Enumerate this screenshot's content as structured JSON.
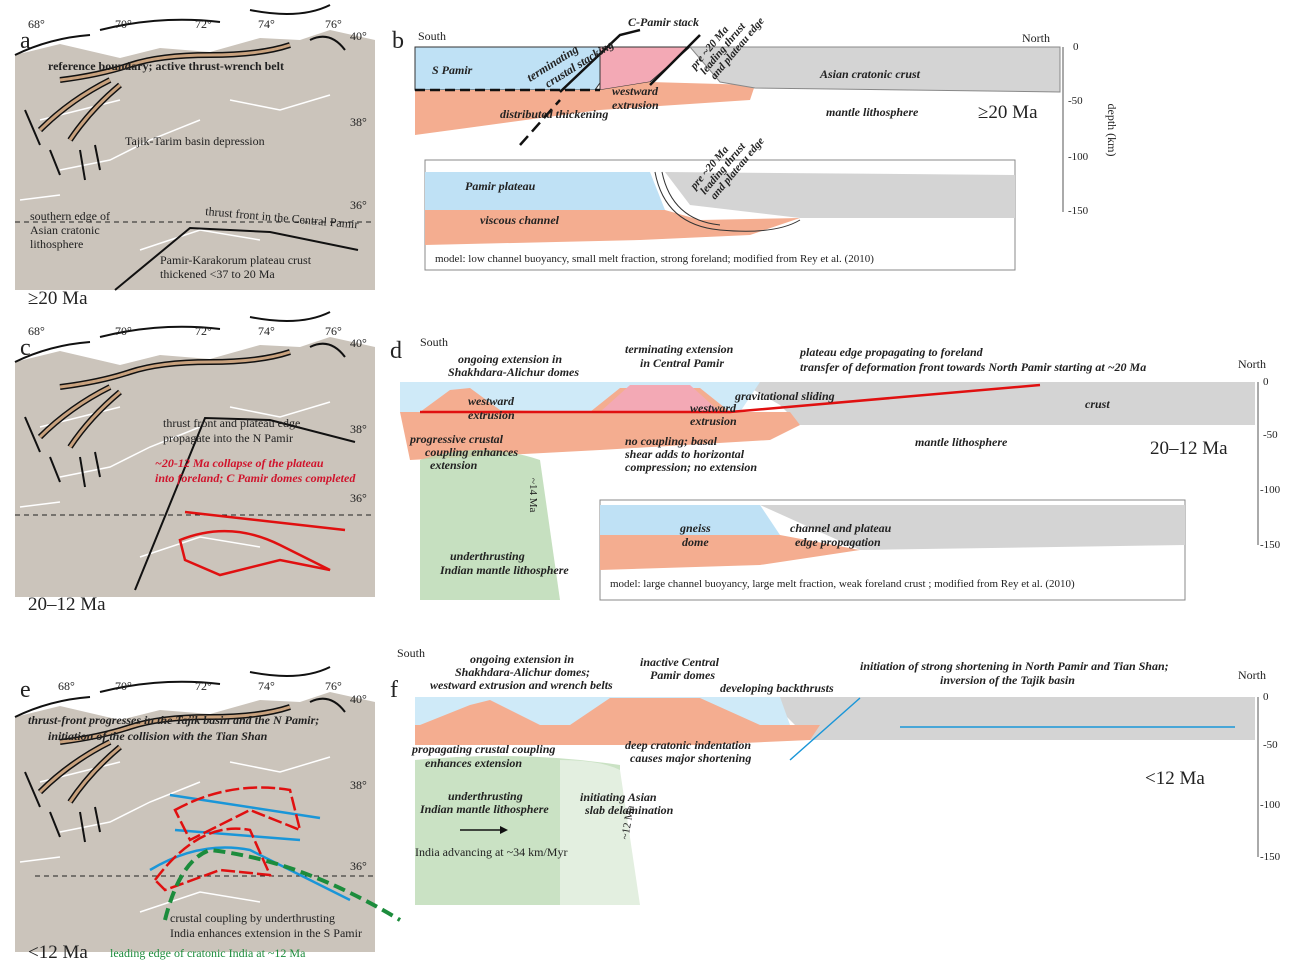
{
  "panel_a": {
    "label": "a",
    "longitudes": [
      "68°",
      "70°",
      "72°",
      "74°",
      "76°"
    ],
    "latitudes": [
      "40°",
      "38°",
      "36°"
    ],
    "reference_boundary": "reference boundary; active thrust-wrench belt",
    "basin": "Tajik-Tarim basin depression",
    "cratonic_edge": [
      "southern edge of",
      "Asian cratonic",
      "lithosphere"
    ],
    "thrust_front": "thrust front in the Central Pamir",
    "plateau_crust": [
      "Pamir-Karakorum plateau crust",
      "thickened <37 to 20 Ma"
    ],
    "age": "≥20 Ma"
  },
  "panel_b": {
    "label": "b",
    "south": "South",
    "north": "North",
    "stack": "C-Pamir stack",
    "stacking": [
      "terminating",
      "crustal stacking"
    ],
    "s_pamir": "S Pamir",
    "extrusion": [
      "westward",
      "extrusion"
    ],
    "leading_thrust": [
      "pre ~20 Ma",
      "leading thrust",
      "and plateau edge"
    ],
    "cratonic_crust": "Asian cratonic crust",
    "mantle": "mantle lithosphere",
    "thickening": "distributed thickening",
    "age": "≥20 Ma",
    "depth_ticks": [
      "0",
      "-50",
      "-100",
      "-150"
    ],
    "depth_label": "depth (km)",
    "model": {
      "plateau": "Pamir plateau",
      "channel": "viscous channel",
      "leading_thrust": [
        "pre ~20 Ma",
        "leading thrust",
        "and plateau edge"
      ],
      "caption": "model: low channel buoyancy, small melt fraction, strong foreland; modified from Rey et al. (2010)"
    }
  },
  "panel_c": {
    "label": "c",
    "longitudes": [
      "68°",
      "70°",
      "72°",
      "74°",
      "76°"
    ],
    "latitudes": [
      "40°",
      "38°",
      "36°"
    ],
    "thrust_front": [
      "thrust front and plateau edge",
      "propagate into the N Pamir"
    ],
    "collapse": [
      "~20-12 Ma collapse of the plateau",
      "into foreland; C Pamir domes completed"
    ],
    "age": "20–12 Ma"
  },
  "panel_d": {
    "label": "d",
    "south": "South",
    "north": "North",
    "ongoing": [
      "ongoing extension in",
      "Shakhdara-Alichur domes"
    ],
    "terminating": [
      "terminating extension",
      "in Central Pamir"
    ],
    "propagating": [
      "plateau edge propagating to foreland",
      "transfer of deformation front towards North Pamir starting at ~20 Ma"
    ],
    "extrusion_south": [
      "westward",
      "extrusion"
    ],
    "extrusion_central": [
      "westward",
      "extrusion"
    ],
    "sliding": "gravitational sliding",
    "crust": "crust",
    "coupling": [
      "progressive crustal",
      "coupling enhances",
      "extension"
    ],
    "no_coupling": [
      "no coupling; basal",
      "shear adds to horizontal",
      "compression; no extension"
    ],
    "mantle": "mantle lithosphere",
    "age": "20–12 Ma",
    "slab_age": "~14 Ma",
    "underthrusting": [
      "underthrusting",
      "Indian mantle lithosphere"
    ],
    "depth_ticks": [
      "0",
      "-50",
      "-100",
      "-150"
    ],
    "model": {
      "dome": [
        "gneiss",
        "dome"
      ],
      "channel": [
        "channel and plateau",
        "edge propagation"
      ],
      "caption": "model: large channel buoyancy, large melt fraction, weak foreland crust ; modified from Rey et al. (2010)"
    }
  },
  "panel_e": {
    "label": "e",
    "longitudes": [
      "68°",
      "70°",
      "72°",
      "74°",
      "76°"
    ],
    "latitudes": [
      "40°",
      "38°",
      "36°"
    ],
    "thrust_front": [
      "thrust-front progresses in the Tajik basin and the N Pamir;",
      "initiation of the collision with the Tian Shan"
    ],
    "coupling": [
      "crustal coupling by underthrusting",
      "India enhances extension in the S Pamir"
    ],
    "age": "<12 Ma",
    "india_edge": "leading edge of cratonic India at ~12 Ma"
  },
  "panel_f": {
    "label": "f",
    "south": "South",
    "north": "North",
    "ongoing": [
      "ongoing extension in",
      "Shakhdara-Alichur domes;",
      "westward extrusion and wrench belts"
    ],
    "inactive": [
      "inactive Central",
      "Pamir domes"
    ],
    "backthrusts": "developing backthrusts",
    "shortening": [
      "initiation of strong shortening in North Pamir and Tian Shan;",
      "inversion of the Tajik basin"
    ],
    "coupling": [
      "propagating crustal coupling",
      "enhances extension"
    ],
    "indentation": [
      "deep cratonic indentation",
      "causes major shortening"
    ],
    "age": "<12 Ma",
    "underthrusting": [
      "underthrusting",
      "Indian mantle lithosphere"
    ],
    "delamination": [
      "initiating Asian",
      "slab delamination"
    ],
    "advancing": "India advancing at ~34 km/Myr",
    "slab_age": "~12 Ma",
    "depth_ticks": [
      "0",
      "-50",
      "-100",
      "-150"
    ]
  }
}
